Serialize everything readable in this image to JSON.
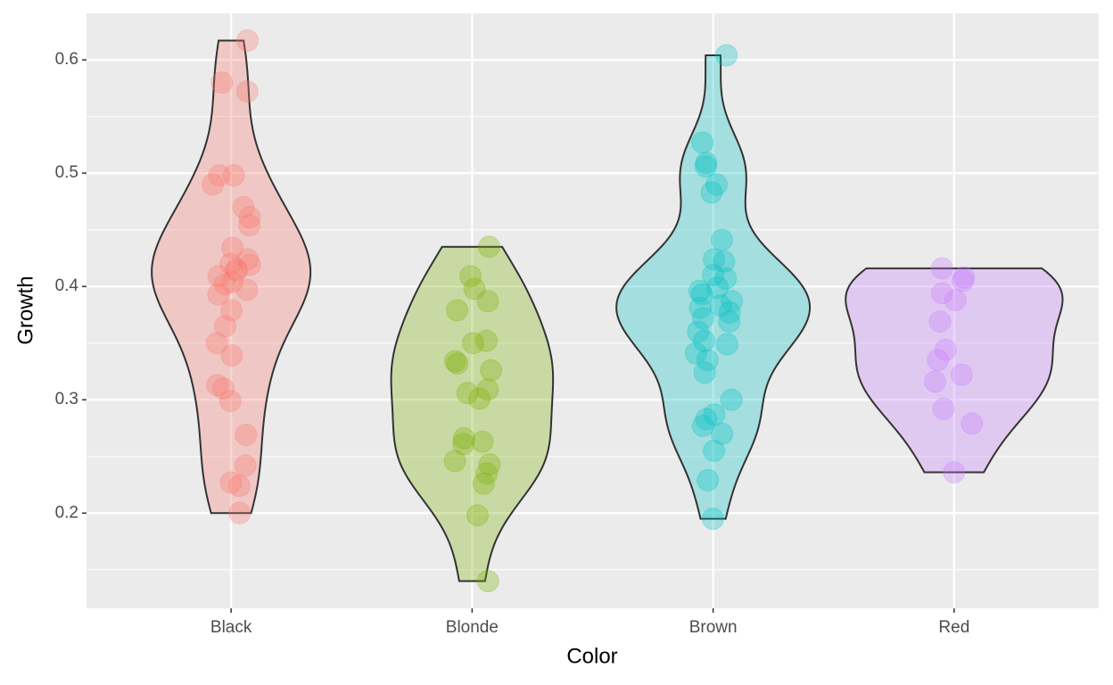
{
  "chart_data": {
    "type": "violin",
    "x_label": "Color",
    "y_label": "Growth",
    "categories": [
      "Black",
      "Blonde",
      "Brown",
      "Red"
    ],
    "series": [
      {
        "name": "Black",
        "color": "#F8766D",
        "values": [
          0.617,
          0.58,
          0.572,
          0.498,
          0.498,
          0.49,
          0.47,
          0.461,
          0.454,
          0.434,
          0.424,
          0.42,
          0.419,
          0.415,
          0.414,
          0.409,
          0.404,
          0.402,
          0.397,
          0.393,
          0.379,
          0.365,
          0.35,
          0.339,
          0.313,
          0.31,
          0.299,
          0.269,
          0.242,
          0.227,
          0.224,
          0.2
        ]
      },
      {
        "name": "Blonde",
        "color": "#7CAE00",
        "values": [
          0.435,
          0.409,
          0.398,
          0.387,
          0.379,
          0.352,
          0.35,
          0.334,
          0.332,
          0.326,
          0.309,
          0.306,
          0.301,
          0.266,
          0.263,
          0.261,
          0.246,
          0.243,
          0.235,
          0.226,
          0.198,
          0.14
        ]
      },
      {
        "name": "Brown",
        "color": "#00BFC4",
        "values": [
          0.604,
          0.527,
          0.509,
          0.506,
          0.49,
          0.483,
          0.441,
          0.424,
          0.422,
          0.41,
          0.407,
          0.399,
          0.396,
          0.393,
          0.387,
          0.383,
          0.381,
          0.377,
          0.372,
          0.369,
          0.36,
          0.352,
          0.349,
          0.341,
          0.335,
          0.324,
          0.3,
          0.287,
          0.283,
          0.277,
          0.27,
          0.255,
          0.229,
          0.195
        ]
      },
      {
        "name": "Red",
        "color": "#C77CFF",
        "values": [
          0.416,
          0.408,
          0.405,
          0.394,
          0.388,
          0.369,
          0.344,
          0.335,
          0.322,
          0.316,
          0.292,
          0.279,
          0.236
        ]
      }
    ],
    "ylim": [
      0.116,
      0.641
    ],
    "yticks": [
      0.2,
      0.3,
      0.4,
      0.5,
      0.6
    ],
    "grid": true
  }
}
